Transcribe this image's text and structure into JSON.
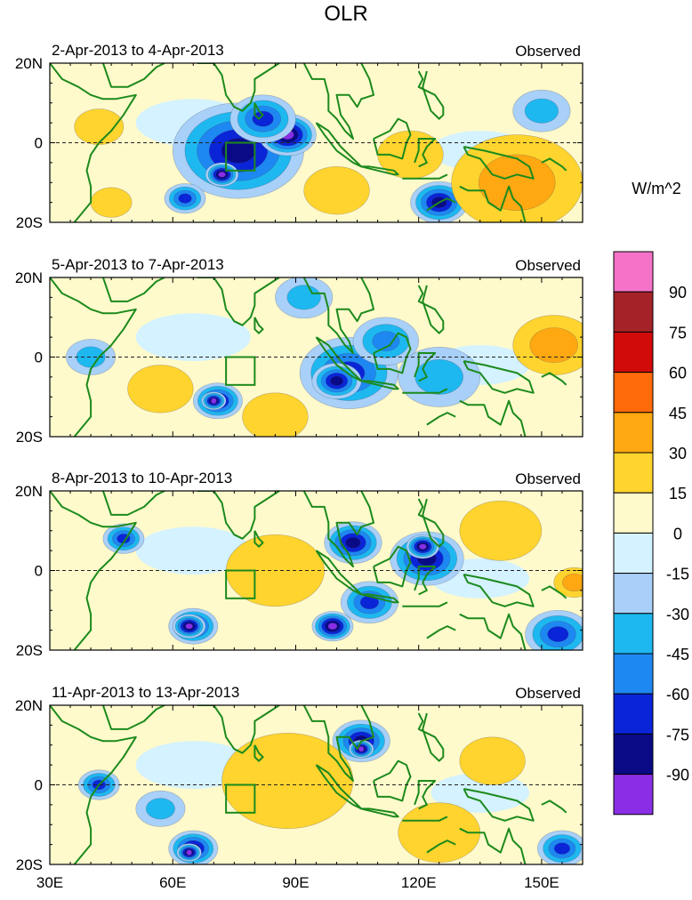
{
  "title": "OLR",
  "colorbar": {
    "units": "W/m^2",
    "levels": [
      "90",
      "75",
      "60",
      "45",
      "30",
      "15",
      "0",
      "-15",
      "-30",
      "-45",
      "-60",
      "-75",
      "-90"
    ],
    "colors": [
      "#f472c8",
      "#a52228",
      "#d10a0a",
      "#ff6a0a",
      "#ffa812",
      "#ffd42e",
      "#fffacc",
      "#d4f2ff",
      "#a8d0f8",
      "#1eb8f0",
      "#1e88f2",
      "#0a24d8",
      "#0a0a86",
      "#8a2ee6"
    ]
  },
  "colors": {
    "coast": "#1c8a1c",
    "box": "#1c8a1c",
    "zero_line": "#222222"
  },
  "chart_data": {
    "type": "heatmap",
    "variable": "OLR anomaly",
    "title": "OLR",
    "units": "W/m^2",
    "xlim": [
      30,
      160
    ],
    "ylim": [
      -20,
      20
    ],
    "x_ticks": [
      30,
      60,
      90,
      120,
      150
    ],
    "x_tick_labels": [
      "30E",
      "60E",
      "90E",
      "120E",
      "150E"
    ],
    "y_ticks": [
      20,
      0,
      -20
    ],
    "y_tick_labels": [
      "20N",
      "0",
      "20S"
    ],
    "box_region": {
      "lon": [
        73,
        80
      ],
      "lat": [
        -7,
        0
      ]
    },
    "panels": [
      {
        "label": "2-Apr-2013 to 4-Apr-2013",
        "tag": "Observed",
        "features": [
          {
            "lon": 76,
            "lat": -2,
            "r": 16,
            "v": -75
          },
          {
            "lon": 88,
            "lat": 2,
            "r": 7,
            "v": -90
          },
          {
            "lon": 72,
            "lat": -8,
            "r": 4,
            "v": -90
          },
          {
            "lon": 63,
            "lat": -14,
            "r": 5,
            "v": -60
          },
          {
            "lon": 82,
            "lat": 6,
            "r": 8,
            "v": -60
          },
          {
            "lon": 125,
            "lat": -15,
            "r": 7,
            "v": -75
          },
          {
            "lon": 144,
            "lat": -10,
            "r": 16,
            "v": 30
          },
          {
            "lon": 118,
            "lat": -3,
            "r": 8,
            "v": 20
          },
          {
            "lon": 100,
            "lat": -12,
            "r": 8,
            "v": 20
          },
          {
            "lon": 150,
            "lat": 8,
            "r": 7,
            "v": -30
          },
          {
            "lon": 42,
            "lat": 4,
            "r": 6,
            "v": 20
          },
          {
            "lon": 45,
            "lat": -15,
            "r": 5,
            "v": 15
          }
        ]
      },
      {
        "label": "5-Apr-2013 to 7-Apr-2013",
        "tag": "Observed",
        "features": [
          {
            "lon": 103,
            "lat": -4,
            "r": 12,
            "v": -60
          },
          {
            "lon": 100,
            "lat": -6,
            "r": 6,
            "v": -75
          },
          {
            "lon": 71,
            "lat": -11,
            "r": 6,
            "v": -75
          },
          {
            "lon": 70,
            "lat": -11,
            "r": 3,
            "v": -90
          },
          {
            "lon": 112,
            "lat": 4,
            "r": 8,
            "v": -45
          },
          {
            "lon": 125,
            "lat": -5,
            "r": 10,
            "v": -30
          },
          {
            "lon": 92,
            "lat": 15,
            "r": 7,
            "v": -30
          },
          {
            "lon": 153,
            "lat": 3,
            "r": 10,
            "v": 30
          },
          {
            "lon": 57,
            "lat": -8,
            "r": 8,
            "v": 20
          },
          {
            "lon": 85,
            "lat": -15,
            "r": 8,
            "v": 15
          },
          {
            "lon": 40,
            "lat": 0,
            "r": 6,
            "v": -30
          }
        ]
      },
      {
        "label": "8-Apr-2013 to 10-Apr-2013",
        "tag": "Observed",
        "features": [
          {
            "lon": 104,
            "lat": 7,
            "r": 7,
            "v": -75
          },
          {
            "lon": 122,
            "lat": 3,
            "r": 9,
            "v": -75
          },
          {
            "lon": 121,
            "lat": 6,
            "r": 4,
            "v": -90
          },
          {
            "lon": 65,
            "lat": -14,
            "r": 6,
            "v": -75
          },
          {
            "lon": 64,
            "lat": -14,
            "r": 4,
            "v": -90
          },
          {
            "lon": 99,
            "lat": -14,
            "r": 5,
            "v": -90
          },
          {
            "lon": 108,
            "lat": -8,
            "r": 7,
            "v": -60
          },
          {
            "lon": 154,
            "lat": -16,
            "r": 8,
            "v": -60
          },
          {
            "lon": 85,
            "lat": 0,
            "r": 12,
            "v": 25
          },
          {
            "lon": 48,
            "lat": 8,
            "r": 5,
            "v": -60
          },
          {
            "lon": 140,
            "lat": 10,
            "r": 10,
            "v": 15
          },
          {
            "lon": 158,
            "lat": -3,
            "r": 5,
            "v": 30
          }
        ]
      },
      {
        "label": "11-Apr-2013 to 13-Apr-2013",
        "tag": "Observed",
        "features": [
          {
            "lon": 106,
            "lat": 11,
            "r": 7,
            "v": -75
          },
          {
            "lon": 106,
            "lat": 9,
            "r": 3,
            "v": -90
          },
          {
            "lon": 42,
            "lat": 0,
            "r": 5,
            "v": -60
          },
          {
            "lon": 65,
            "lat": -16,
            "r": 6,
            "v": -75
          },
          {
            "lon": 64,
            "lat": -17,
            "r": 3,
            "v": -90
          },
          {
            "lon": 155,
            "lat": -16,
            "r": 6,
            "v": -60
          },
          {
            "lon": 88,
            "lat": 1,
            "r": 16,
            "v": 25
          },
          {
            "lon": 125,
            "lat": -12,
            "r": 10,
            "v": 20
          },
          {
            "lon": 138,
            "lat": 6,
            "r": 8,
            "v": 15
          },
          {
            "lon": 57,
            "lat": -6,
            "r": 6,
            "v": -30
          }
        ]
      }
    ]
  }
}
